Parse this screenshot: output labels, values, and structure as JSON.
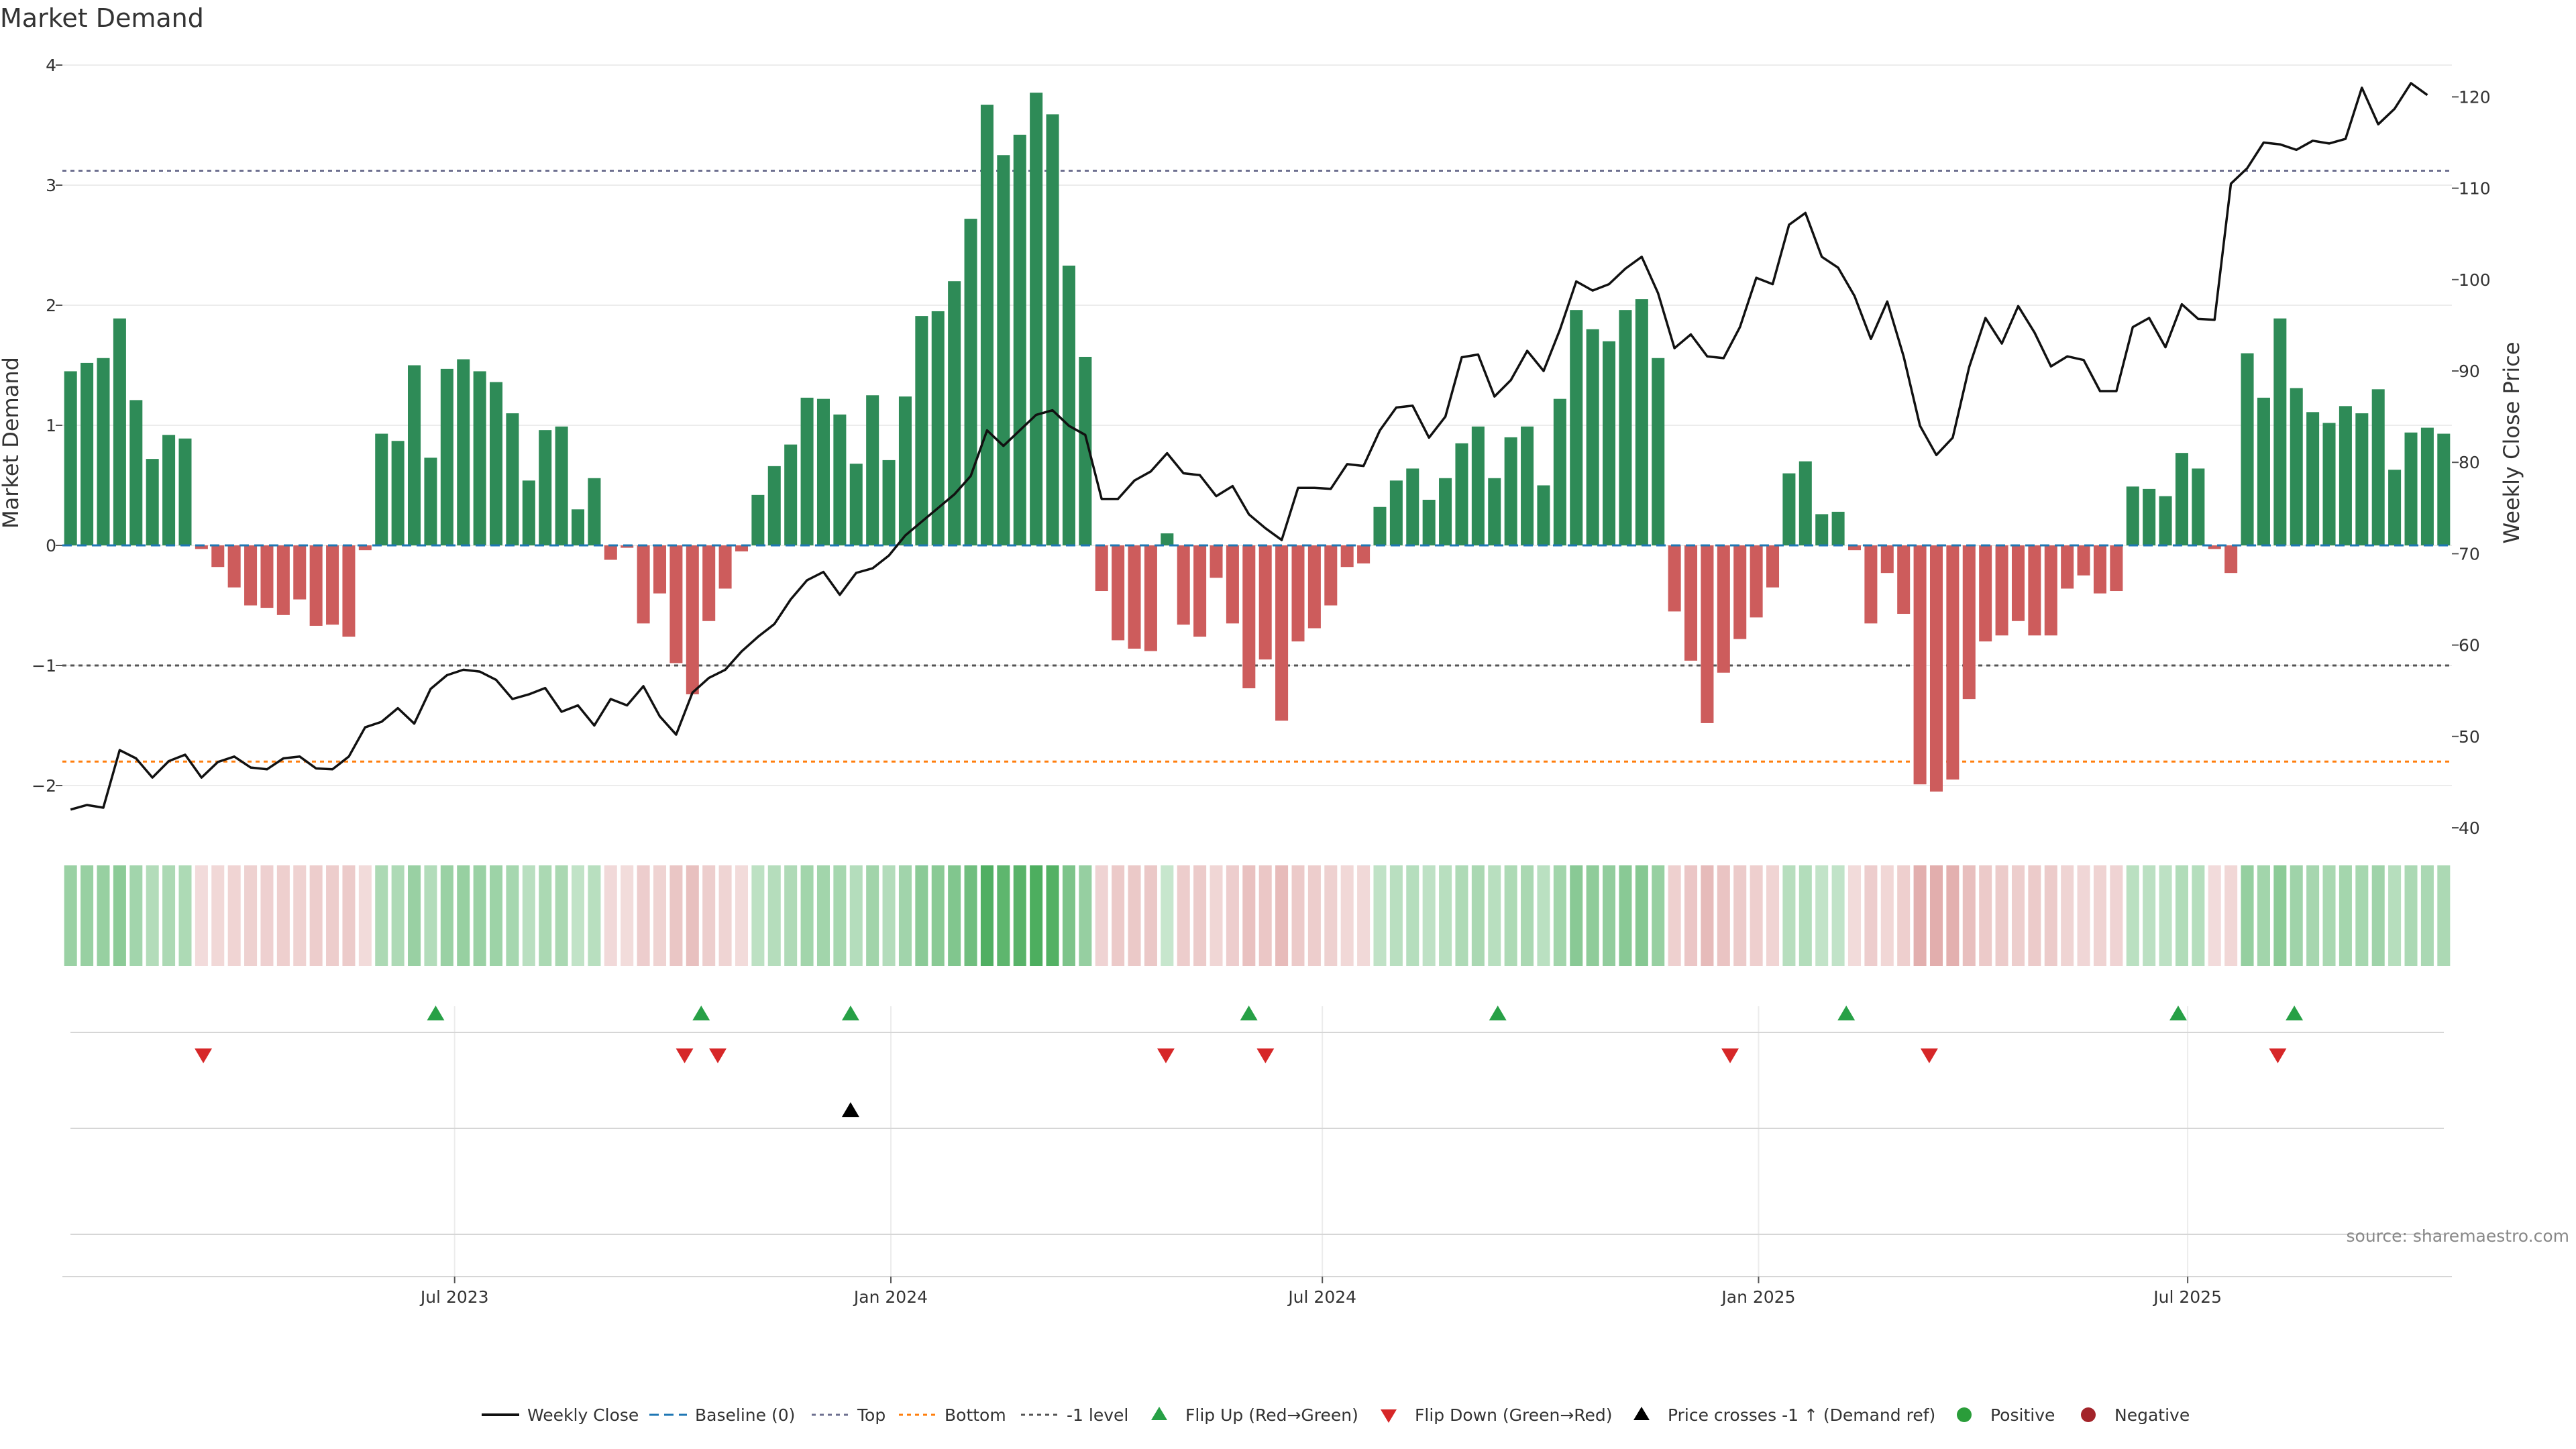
{
  "chart_data": {
    "type": "bar",
    "title": "Market Demand",
    "ylabel": "Market Demand",
    "y2label": "Weekly Close Price",
    "ylim": [
      -2.35,
      4.0
    ],
    "y2lim": [
      38.5,
      122
    ],
    "yticks": [
      -2,
      -1,
      0,
      1,
      2,
      3,
      4
    ],
    "yticklabels": [
      "−2",
      "−1",
      "0",
      "1",
      "2",
      "3",
      "4"
    ],
    "y2ticks": [
      40,
      50,
      60,
      70,
      80,
      90,
      100,
      110,
      120
    ],
    "y2ticklabels": [
      "40",
      "50",
      "60",
      "70",
      "80",
      "90",
      "100",
      "110",
      "120"
    ],
    "x_start": "2023-01-20",
    "x_end": "2025-10-17",
    "xticks": [
      {
        "date": "2023-07-01",
        "label": "Jul 2023"
      },
      {
        "date": "2024-01-01",
        "label": "Jan 2024"
      },
      {
        "date": "2024-07-01",
        "label": "Jul 2024"
      },
      {
        "date": "2025-01-01",
        "label": "Jan 2025"
      },
      {
        "date": "2025-07-01",
        "label": "Jul 2025"
      }
    ],
    "reference_lines": {
      "top": 3.12,
      "bottom": -1.8,
      "minus_one": -1,
      "baseline": 0
    },
    "demand": [
      1.45,
      1.52,
      1.56,
      1.89,
      1.21,
      0.72,
      0.92,
      0.89,
      -0.03,
      -0.18,
      -0.35,
      -0.5,
      -0.52,
      -0.58,
      -0.45,
      -0.67,
      -0.66,
      -0.76,
      -0.04,
      0.93,
      0.87,
      1.5,
      0.73,
      1.47,
      1.55,
      1.45,
      1.36,
      1.1,
      0.54,
      0.96,
      0.99,
      0.3,
      0.56,
      -0.12,
      -0.02,
      -0.65,
      -0.4,
      -0.98,
      -1.24,
      -0.63,
      -0.36,
      -0.05,
      0.42,
      0.66,
      0.84,
      1.23,
      1.22,
      1.09,
      0.68,
      1.25,
      0.71,
      1.24,
      1.91,
      1.95,
      2.2,
      2.72,
      3.67,
      3.25,
      3.42,
      3.77,
      3.59,
      2.33,
      1.57,
      -0.38,
      -0.79,
      -0.86,
      -0.88,
      0.1,
      -0.66,
      -0.76,
      -0.27,
      -0.65,
      -1.19,
      -0.95,
      -1.46,
      -0.8,
      -0.69,
      -0.5,
      -0.18,
      -0.15,
      0.32,
      0.54,
      0.64,
      0.38,
      0.56,
      0.85,
      0.99,
      0.56,
      0.9,
      0.99,
      0.5,
      1.22,
      1.96,
      1.8,
      1.7,
      1.96,
      2.05,
      1.56,
      -0.55,
      -0.96,
      -1.48,
      -1.06,
      -0.78,
      -0.6,
      -0.35,
      0.6,
      0.7,
      0.26,
      0.28,
      -0.04,
      -0.65,
      -0.23,
      -0.57,
      -1.99,
      -2.05,
      -1.95,
      -1.28,
      -0.8,
      -0.75,
      -0.63,
      -0.75,
      -0.75,
      -0.36,
      -0.25,
      -0.4,
      -0.38,
      0.49,
      0.47,
      0.41,
      0.77,
      0.64,
      -0.03,
      -0.23,
      1.6,
      1.23,
      1.89,
      1.31,
      1.11,
      1.02,
      1.16,
      1.1,
      1.3,
      0.63,
      0.94,
      0.98,
      0.93
    ],
    "weekly_close": [
      42,
      42.5,
      42.2,
      48.5,
      47.6,
      45.5,
      47.3,
      48,
      45.5,
      47.2,
      47.8,
      46.6,
      46.4,
      47.6,
      47.8,
      46.5,
      46.4,
      47.8,
      51,
      51.6,
      53.1,
      51.4,
      55.2,
      56.7,
      57.3,
      57.1,
      56.2,
      54.1,
      54.6,
      55.3,
      52.7,
      53.4,
      51.2,
      54.1,
      53.4,
      55.5,
      52.2,
      50.2,
      54.8,
      56.4,
      57.3,
      59.3,
      60.9,
      62.3,
      65,
      67.1,
      68,
      65.5,
      67.9,
      68.4,
      69.8,
      72,
      73.5,
      75,
      76.5,
      78.5,
      83.5,
      81.8,
      83.5,
      85.2,
      85.7,
      84,
      83,
      76,
      76,
      78,
      79,
      81,
      78.8,
      78.6,
      76.3,
      77.4,
      74.3,
      72.8,
      71.5,
      77.2,
      77.2,
      77.1,
      79.8,
      79.6,
      83.5,
      86,
      86.2,
      82.7,
      85,
      91.5,
      91.8,
      87.2,
      89,
      92.2,
      90,
      94.5,
      99.8,
      98.8,
      99.5,
      101.2,
      102.5,
      98.5,
      92.5,
      94,
      91.6,
      91.4,
      94.8,
      100.2,
      99.5,
      106,
      107.3,
      102.5,
      101.3,
      98.2,
      93.5,
      97.6,
      91.6,
      84,
      80.8,
      82.7,
      90.4,
      95.8,
      93,
      97.1,
      94.2,
      90.5,
      91.6,
      91.2,
      87.8,
      87.8,
      94.8,
      95.8,
      92.6,
      97.3,
      95.7,
      95.6,
      110.5,
      112.2,
      115,
      114.8,
      114.2,
      115.2,
      114.9,
      115.4,
      121,
      117,
      118.7,
      121.5,
      120.2
    ],
    "flip_up": [
      "2023-06-23",
      "2023-10-13",
      "2023-12-15",
      "2024-05-31",
      "2024-09-13",
      "2025-02-07",
      "2025-06-27",
      "2025-08-15"
    ],
    "flip_down": [
      "2023-03-17",
      "2023-10-06",
      "2023-10-20",
      "2024-04-26",
      "2024-06-07",
      "2024-12-20",
      "2025-03-14",
      "2025-08-08"
    ],
    "price_cross": [
      "2023-12-15"
    ],
    "legend": [
      {
        "key": "weekly_close",
        "label": "Weekly Close"
      },
      {
        "key": "baseline",
        "label": "Baseline (0)"
      },
      {
        "key": "top",
        "label": "Top"
      },
      {
        "key": "bottom",
        "label": "Bottom"
      },
      {
        "key": "minus_one",
        "label": "-1 level"
      },
      {
        "key": "flip_up",
        "label": "Flip Up (Red→Green)"
      },
      {
        "key": "flip_down",
        "label": "Flip Down (Green→Red)"
      },
      {
        "key": "price_cross",
        "label": "Price crosses -1 ↑ (Demand ref)"
      },
      {
        "key": "positive",
        "label": "Positive"
      },
      {
        "key": "negative",
        "label": "Negative"
      }
    ],
    "legend_placement": "bottom",
    "source": "source: sharemaestro.com"
  },
  "colors": {
    "positive": "#2e8b57",
    "negative": "#cd5c5c",
    "flip_up": "#27a046",
    "flip_down": "#d62728",
    "price": "#111111",
    "baseline": "#1f77b4",
    "top": "#6e7090",
    "bottom": "#ff7f0e",
    "minus_one": "#555555",
    "legend_positive": "#2a9d3a",
    "legend_negative": "#a3242a"
  }
}
